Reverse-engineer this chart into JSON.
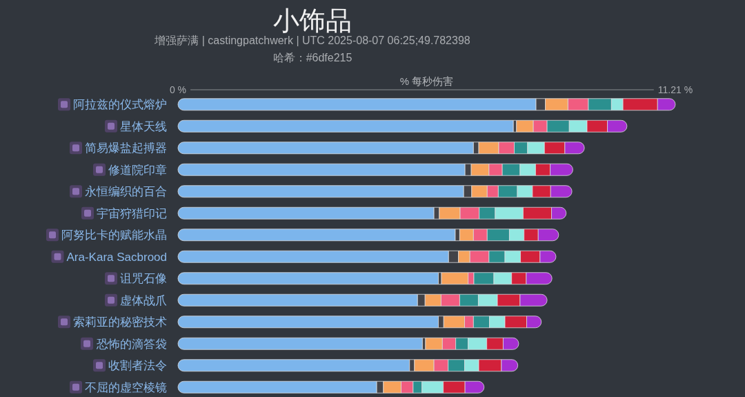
{
  "chart_data": {
    "type": "bar",
    "orientation": "horizontal",
    "stacked": true,
    "title": "小饰品",
    "subtitle": "增强萨满 | castingpatchwerk | UTC 2025-08-07 06:25;49.782398\n哈希：#6dfe215",
    "xlabel": "% 每秒伤害",
    "categories": [
      "阿拉兹的仪式熔炉",
      "星体天线",
      "简易爆盐起搏器",
      "修道院印章",
      "永恒编织的百合",
      "宇宙狩猎印记",
      "阿努比卡的赋能水晶",
      "Ara-Kara Sacbrood",
      "诅咒石像",
      "虚体战爪",
      "索莉亚的秘密技术",
      "恐怖的滴答袋",
      "收割者法令",
      "不屈的虚空棱镜"
    ],
    "series": [
      {
        "color": "#7cb5ec",
        "values": [
          8.07,
          7.56,
          6.66,
          6.47,
          6.44,
          5.77,
          6.25,
          6.1,
          5.87,
          5.4,
          5.87,
          5.51,
          5.22,
          4.48
        ]
      },
      {
        "color": "#434348",
        "values": [
          0.21,
          0.07,
          0.12,
          0.14,
          0.18,
          0.12,
          0.1,
          0.22,
          0.07,
          0.17,
          0.12,
          0.07,
          0.11,
          0.15
        ]
      },
      {
        "color": "#f7a35c",
        "values": [
          0.51,
          0.38,
          0.45,
          0.4,
          0.35,
          0.47,
          0.31,
          0.26,
          0.6,
          0.36,
          0.47,
          0.38,
          0.44,
          0.4
        ]
      },
      {
        "color": "#f15c80",
        "values": [
          0.46,
          0.31,
          0.35,
          0.3,
          0.25,
          0.43,
          0.31,
          0.43,
          0.13,
          0.42,
          0.2,
          0.3,
          0.32,
          0.27
        ]
      },
      {
        "color": "#2b908f",
        "values": [
          0.52,
          0.5,
          0.3,
          0.4,
          0.43,
          0.36,
          0.5,
          0.36,
          0.45,
          0.42,
          0.36,
          0.28,
          0.37,
          0.2
        ]
      },
      {
        "color": "#91e8e1",
        "values": [
          0.26,
          0.4,
          0.38,
          0.35,
          0.34,
          0.63,
          0.33,
          0.35,
          0.4,
          0.43,
          0.35,
          0.42,
          0.32,
          0.48
        ]
      },
      {
        "color": "#d2213a",
        "values": [
          0.78,
          0.46,
          0.46,
          0.33,
          0.41,
          0.64,
          0.32,
          0.44,
          0.33,
          0.51,
          0.49,
          0.37,
          0.51,
          0.49
        ]
      },
      {
        "color": "#a62fd2",
        "values": [
          0.4,
          0.44,
          0.44,
          0.51,
          0.48,
          0.33,
          0.46,
          0.36,
          0.58,
          0.61,
          0.33,
          0.35,
          0.37,
          0.43
        ]
      }
    ],
    "xlim": [
      0,
      11.21
    ],
    "xticks": [
      {
        "value": 0,
        "label": "0 %"
      },
      {
        "value": 11.21,
        "label": "11.21 %"
      }
    ]
  }
}
